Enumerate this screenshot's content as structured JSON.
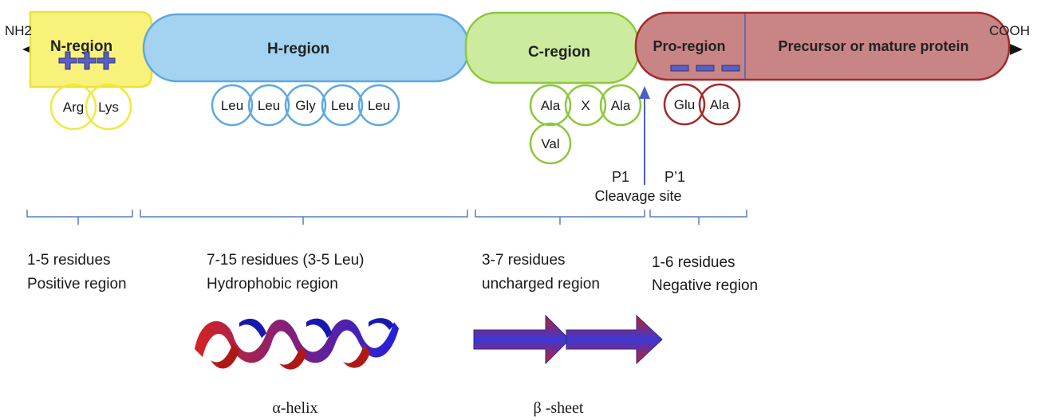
{
  "termini": {
    "n_label": "NH2",
    "c_label": "COOH"
  },
  "regions": {
    "n": {
      "label": "N-region",
      "residues": [
        "Arg",
        "Lys"
      ],
      "length_label": "1-5 residues",
      "type_label": "Positive region",
      "fill": "#f8f27a",
      "stroke": "#e9e23a",
      "circle_stroke": "#eeea3c"
    },
    "h": {
      "label": "H-region",
      "residues": [
        "Leu",
        "Leu",
        "Gly",
        "Leu",
        "Leu"
      ],
      "length_label": "7-15 residues (3-5 Leu)",
      "type_label": "Hydrophobic region",
      "fill": "#a4d3f2",
      "stroke": "#5fa8e0",
      "circle_stroke": "#5fa8e0"
    },
    "c": {
      "label": "C-region",
      "residues": [
        "Ala",
        "X",
        "Ala",
        "Val"
      ],
      "length_label": "3-7 residues",
      "type_label": "uncharged region",
      "fill": "#cdeb9e",
      "stroke": "#8cc83c",
      "circle_stroke": "#8cc83c"
    },
    "pro": {
      "label": "Pro-region",
      "residues": [
        "Glu",
        "Ala"
      ],
      "length_label": "1-6 residues",
      "type_label": "Negative region",
      "fill": "#c98585",
      "stroke": "#a22a2a",
      "circle_stroke": "#a22a2a"
    },
    "mature": {
      "label": "Precursor or mature protein"
    }
  },
  "cleavage": {
    "p1": "P1",
    "p1_prime": "P’1",
    "label": "Cleavage site",
    "arrow_color": "#4a5fc1"
  },
  "structures": {
    "helix_label": "α-helix",
    "sheet_label": "β -sheet",
    "red": "#d42222",
    "blue": "#2020e0"
  },
  "colors": {
    "plus_sign": "#5a5fc0",
    "minus_sign": "#5a5fc0",
    "bracket": "#5a7fc0"
  }
}
